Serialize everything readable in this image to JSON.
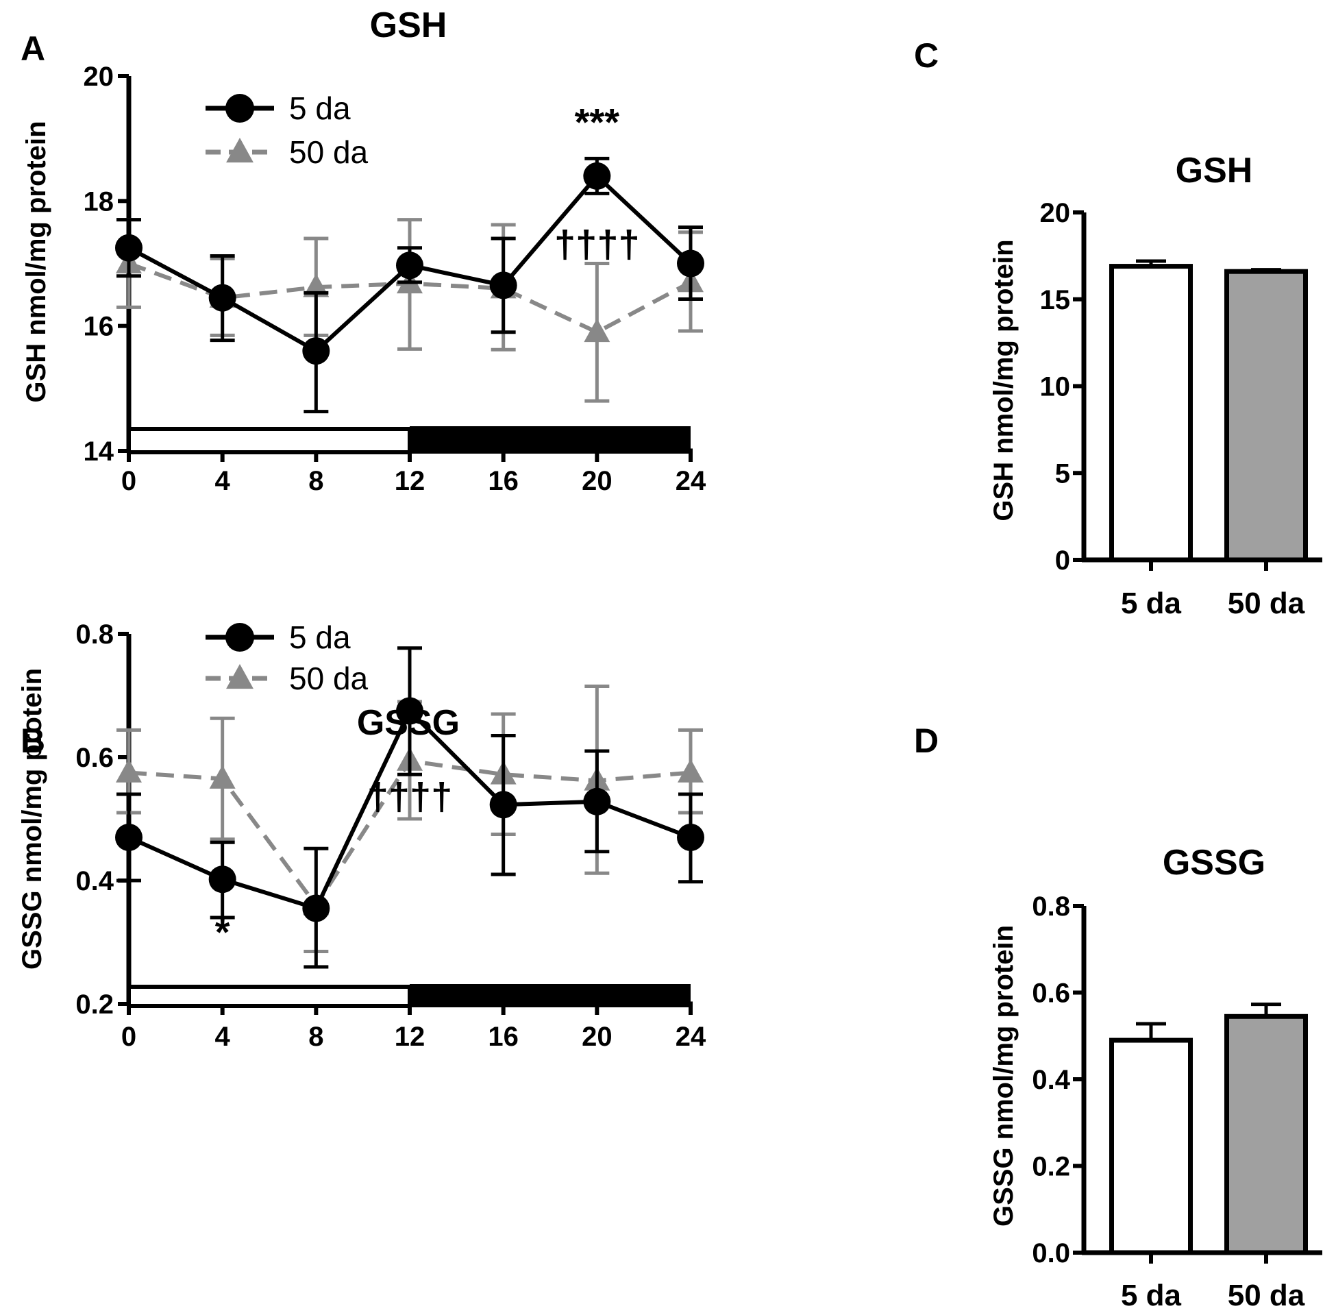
{
  "chart_data": [
    {
      "panel": "A",
      "type": "line",
      "title": "GSH",
      "xlabel": "",
      "ylabel": "GSH nmol/mg protein",
      "xlim": [
        0,
        24
      ],
      "ylim": [
        14,
        20
      ],
      "x_ticks": [
        "0",
        "4",
        "8",
        "12",
        "16",
        "20",
        "24"
      ],
      "y_ticks": [
        "14",
        "16",
        "18",
        "20"
      ],
      "x": [
        0,
        4,
        8,
        12,
        16,
        20,
        24
      ],
      "series": [
        {
          "name": "5 da",
          "color": "#000000",
          "marker": "circle",
          "style": "solid",
          "values": [
            17.25,
            16.45,
            15.6,
            16.97,
            16.65,
            18.4,
            17.0
          ],
          "err_low": [
            16.8,
            15.77,
            14.63,
            16.7,
            15.9,
            18.12,
            16.43
          ],
          "err_high": [
            17.7,
            17.12,
            16.53,
            17.25,
            17.4,
            18.68,
            17.58
          ]
        },
        {
          "name": "50 da",
          "color": "#888888",
          "marker": "triangle",
          "style": "dashed",
          "values": [
            17.0,
            16.45,
            16.62,
            16.68,
            16.6,
            15.9,
            16.7
          ],
          "err_low": [
            16.3,
            15.85,
            15.85,
            15.63,
            15.62,
            14.8,
            15.92
          ],
          "err_high": [
            17.7,
            17.08,
            17.4,
            17.7,
            17.62,
            17.0,
            17.5
          ]
        }
      ],
      "annotations": [
        {
          "text": "***",
          "x": 20,
          "y": 19.05
        },
        {
          "text": "††††",
          "x": 20,
          "y": 17.1
        }
      ],
      "light_dark_bar": {
        "light": [
          0,
          12
        ],
        "dark": [
          12,
          24
        ]
      }
    },
    {
      "panel": "B",
      "type": "line",
      "title": "GSSG",
      "xlabel": "",
      "ylabel": "GSSG nmol/mg protein",
      "xlim": [
        0,
        24
      ],
      "ylim": [
        0.2,
        0.8
      ],
      "x_ticks": [
        "0",
        "4",
        "8",
        "12",
        "16",
        "20",
        "24"
      ],
      "y_ticks": [
        "0.2",
        "0.4",
        "0.6",
        "0.8"
      ],
      "x": [
        0,
        4,
        8,
        12,
        16,
        20,
        24
      ],
      "series": [
        {
          "name": "5 da",
          "color": "#000000",
          "marker": "circle",
          "style": "solid",
          "values": [
            0.47,
            0.402,
            0.355,
            0.675,
            0.523,
            0.528,
            0.47
          ],
          "err_low": [
            0.4,
            0.34,
            0.26,
            0.572,
            0.41,
            0.447,
            0.398
          ],
          "err_high": [
            0.54,
            0.462,
            0.452,
            0.777,
            0.635,
            0.61,
            0.54
          ]
        },
        {
          "name": "50 da",
          "color": "#888888",
          "marker": "triangle",
          "style": "dashed",
          "values": [
            0.575,
            0.565,
            0.36,
            0.594,
            0.572,
            0.562,
            0.575
          ],
          "err_low": [
            0.51,
            0.467,
            0.285,
            0.5,
            0.475,
            0.412,
            0.51
          ],
          "err_high": [
            0.644,
            0.663,
            0.36,
            0.69,
            0.67,
            0.715,
            0.644
          ]
        }
      ],
      "annotations": [
        {
          "text": "*",
          "x": 4,
          "y": 0.295
        },
        {
          "text": "††††",
          "x": 12,
          "y": 0.515
        }
      ],
      "light_dark_bar": {
        "light": [
          0,
          12
        ],
        "dark": [
          12,
          24
        ]
      }
    },
    {
      "panel": "C",
      "type": "bar",
      "title": "GSH",
      "xlabel": "",
      "ylabel": "GSH nmol/mg protein",
      "categories": [
        "5 da",
        "50 da"
      ],
      "values": [
        16.9,
        16.6
      ],
      "errors": [
        0.3,
        0.1
      ],
      "colors": [
        "#ffffff",
        "#a0a0a0"
      ],
      "ylim": [
        0,
        20
      ],
      "y_ticks": [
        "0",
        "5",
        "10",
        "15",
        "20"
      ]
    },
    {
      "panel": "D",
      "type": "bar",
      "title": "GSSG",
      "xlabel": "",
      "ylabel": "GSSG nmol/mg protein",
      "categories": [
        "5 da",
        "50 da"
      ],
      "values": [
        0.49,
        0.545
      ],
      "errors": [
        0.038,
        0.028
      ],
      "colors": [
        "#ffffff",
        "#a0a0a0"
      ],
      "ylim": [
        0,
        0.8
      ],
      "y_ticks": [
        "0.0",
        "0.2",
        "0.4",
        "0.6",
        "0.8"
      ]
    }
  ]
}
